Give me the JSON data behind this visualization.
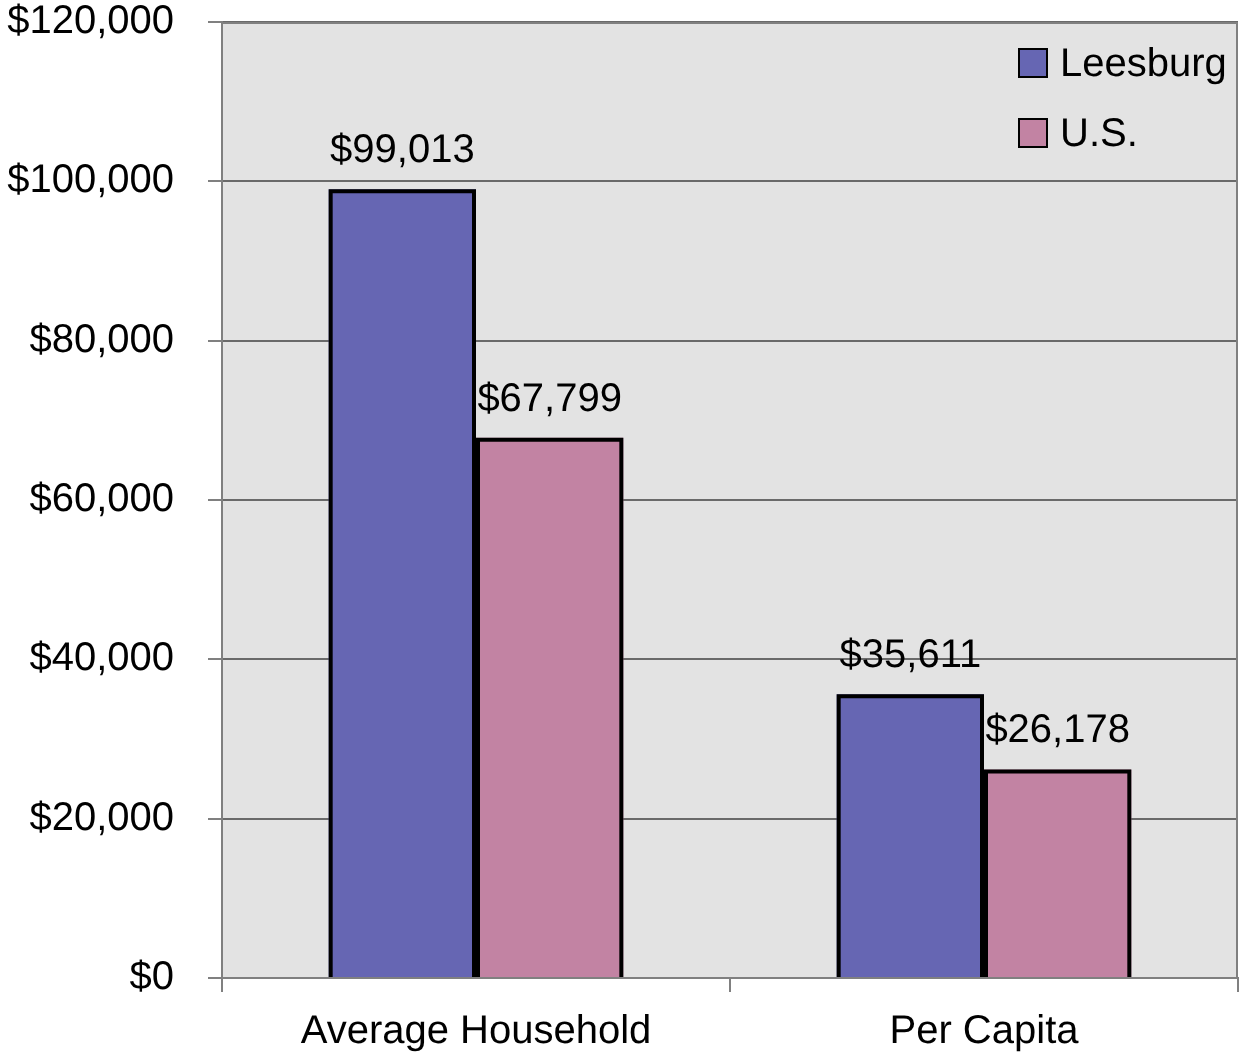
{
  "chart_data": {
    "type": "bar",
    "categories": [
      "Average Household",
      "Per Capita"
    ],
    "series": [
      {
        "name": "Leesburg",
        "color": "#6666b3",
        "values": [
          99013,
          35611
        ],
        "value_labels": [
          "$99,013",
          "$35,611"
        ]
      },
      {
        "name": "U.S.",
        "color": "#c283a3",
        "values": [
          67799,
          26178
        ],
        "value_labels": [
          "$67,799",
          "$26,178"
        ]
      }
    ],
    "ylim": [
      0,
      120000
    ],
    "yticks": [
      {
        "value": 0,
        "label": "$0"
      },
      {
        "value": 20000,
        "label": "$20,000"
      },
      {
        "value": 40000,
        "label": "$40,000"
      },
      {
        "value": 60000,
        "label": "$60,000"
      },
      {
        "value": 80000,
        "label": "$80,000"
      },
      {
        "value": 100000,
        "label": "$100,000"
      },
      {
        "value": 120000,
        "label": "$120,000"
      }
    ],
    "grid": "y",
    "legend": "top right"
  }
}
